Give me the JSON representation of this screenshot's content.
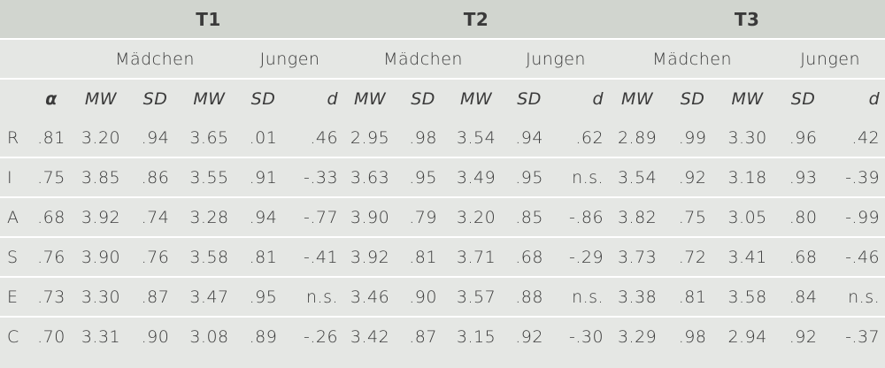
{
  "timepoints": [
    "T1",
    "T2",
    "T3"
  ],
  "groups": [
    "Mädchen",
    "Jungen",
    "Mädchen",
    "Jungen",
    "Mädchen",
    "Jungen"
  ],
  "subheaders": [
    "α",
    "MW",
    "SD",
    "MW",
    "SD",
    "d",
    "MW",
    "SD",
    "MW",
    "SD",
    "d",
    "MW",
    "SD",
    "MW",
    "SD",
    "d"
  ],
  "rows": [
    [
      "R",
      ".81",
      "3.20",
      ".94",
      "3.65",
      ".01",
      ".46",
      "2.95",
      ".98",
      "3.54",
      ".94",
      ".62",
      "2.89",
      ".99",
      "3.30",
      ".96",
      ".42"
    ],
    [
      "I",
      ".75",
      "3.85",
      ".86",
      "3.55",
      ".91",
      "-.33",
      "3.63",
      ".95",
      "3.49",
      ".95",
      "n.s.",
      "3.54",
      ".92",
      "3.18",
      ".93",
      "-.39"
    ],
    [
      "A",
      ".68",
      "3.92",
      ".74",
      "3.28",
      ".94",
      "-.77",
      "3.90",
      ".79",
      "3.20",
      ".85",
      "-.86",
      "3.82",
      ".75",
      "3.05",
      ".80",
      "-.99"
    ],
    [
      "S",
      ".76",
      "3.90",
      ".76",
      "3.58",
      ".81",
      "-.41",
      "3.92",
      ".81",
      "3.71",
      ".68",
      "-.29",
      "3.73",
      ".72",
      "3.41",
      ".68",
      "-.46"
    ],
    [
      "E",
      ".73",
      "3.30",
      ".87",
      "3.47",
      ".95",
      "n.s.",
      "3.46",
      ".90",
      "3.57",
      ".88",
      "n.s.",
      "3.38",
      ".81",
      "3.58",
      ".84",
      "n.s."
    ],
    [
      "C",
      ".70",
      "3.31",
      ".90",
      "3.08",
      ".89",
      "-.26",
      "3.42",
      ".87",
      "3.15",
      ".92",
      "-.30",
      "3.29",
      ".98",
      "2.94",
      ".92",
      "-.37"
    ]
  ]
}
